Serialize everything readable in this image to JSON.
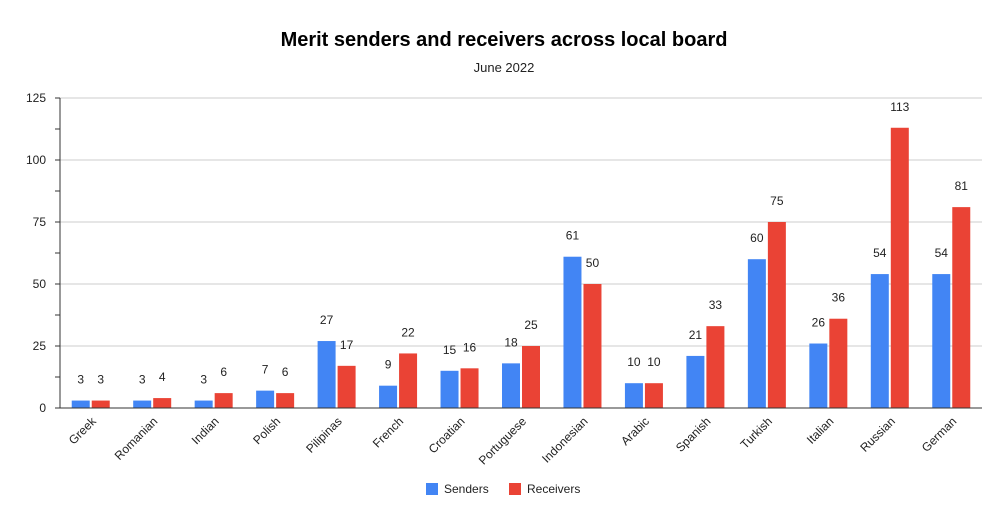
{
  "chart_data": {
    "type": "bar",
    "title": "Merit senders and receivers across local board",
    "subtitle": "June 2022",
    "categories": [
      "Greek",
      "Romanian",
      "Indian",
      "Polish",
      "Pilipinas",
      "French",
      "Croatian",
      "Portuguese",
      "Indonesian",
      "Arabic",
      "Spanish",
      "Turkish",
      "Italian",
      "Russian",
      "German"
    ],
    "series": [
      {
        "name": "Senders",
        "color": "#4285f4",
        "values": [
          3,
          3,
          3,
          7,
          27,
          9,
          15,
          18,
          61,
          10,
          21,
          60,
          26,
          54,
          54
        ]
      },
      {
        "name": "Receivers",
        "color": "#ea4335",
        "values": [
          3,
          4,
          6,
          6,
          17,
          22,
          16,
          25,
          50,
          10,
          33,
          75,
          36,
          113,
          81
        ]
      }
    ],
    "ylim": [
      0,
      125
    ],
    "yticks": [
      0,
      25,
      50,
      75,
      100,
      125
    ],
    "grid": true,
    "legend_position": "bottom"
  }
}
